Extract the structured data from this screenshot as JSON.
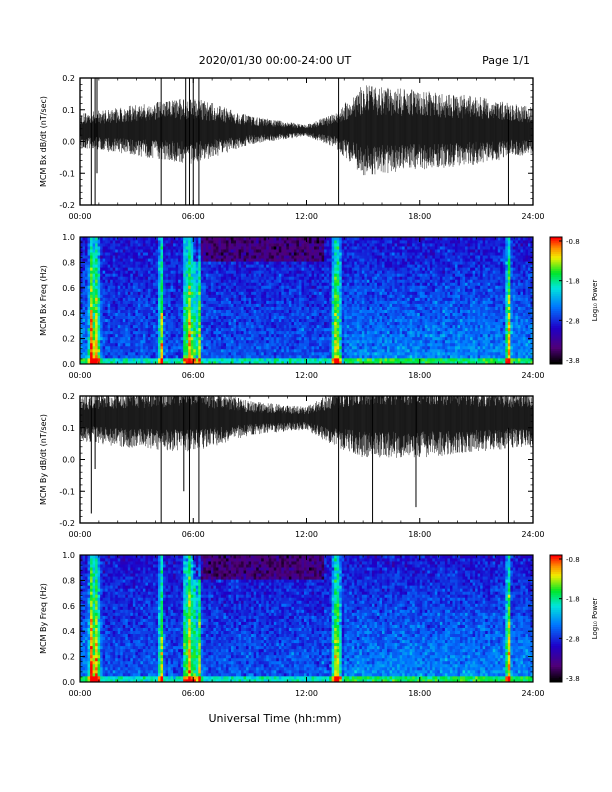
{
  "header": {
    "title": "2020/01/30  00:00-24:00 UT",
    "page": "Page 1/1"
  },
  "xaxis_label": "Universal Time (hh:mm)",
  "colorbar": {
    "label": "Log₁₀ Power",
    "ticks": [
      "-0.8",
      "-1.8",
      "-2.8",
      "-3.8"
    ],
    "scale": "rainbow: black-purple-blue-cyan-green-yellow-orange-red"
  },
  "chart_data": [
    {
      "type": "line",
      "ylabel": "MCM Bx dB/dt (nT/sec)",
      "xlim": [
        0,
        24
      ],
      "ylim": [
        -0.2,
        0.2
      ],
      "x_ticks": [
        "00:00",
        "06:00",
        "12:00",
        "18:00",
        "24:00"
      ],
      "y_ticks": [
        "0.2",
        "0.1",
        "0.0",
        "-0.1",
        "-0.2"
      ],
      "baseline": 0.035,
      "noise_profile": [
        [
          0,
          0.03
        ],
        [
          2,
          0.04
        ],
        [
          6,
          0.06
        ],
        [
          9,
          0.025
        ],
        [
          12,
          0.01
        ],
        [
          13.5,
          0.03
        ],
        [
          15,
          0.08
        ],
        [
          18,
          0.07
        ],
        [
          21,
          0.06
        ],
        [
          24,
          0.04
        ]
      ],
      "spikes": [
        [
          0.6,
          -0.2,
          0.2
        ],
        [
          0.8,
          -0.2,
          0.2
        ],
        [
          0.9,
          -0.1,
          0.2
        ],
        [
          4.3,
          -0.2,
          0.2
        ],
        [
          5.6,
          -0.2,
          0.2
        ],
        [
          5.8,
          -0.2,
          0.2
        ],
        [
          6.0,
          -0.2,
          0.2
        ],
        [
          6.3,
          -0.2,
          0.2
        ],
        [
          13.7,
          -0.2,
          0.2
        ],
        [
          22.7,
          -0.2,
          0.1
        ]
      ]
    },
    {
      "type": "heatmap",
      "ylabel": "MCM Bx Freq (Hz)",
      "xlim": [
        0,
        24
      ],
      "ylim": [
        0.0,
        1.0
      ],
      "x_ticks": [
        "00:00",
        "06:00",
        "12:00",
        "18:00",
        "24:00"
      ],
      "y_ticks": [
        "1.0",
        "0.8",
        "0.6",
        "0.4",
        "0.2",
        "0.0"
      ],
      "zlim": [
        -3.8,
        -0.8
      ],
      "bright_times": [
        0.6,
        0.8,
        0.9,
        4.3,
        5.6,
        5.8,
        6.0,
        6.3,
        13.5,
        13.7,
        22.7
      ]
    },
    {
      "type": "line",
      "ylabel": "MCM By dB/dt (nT/sec)",
      "xlim": [
        0,
        24
      ],
      "ylim": [
        -0.2,
        0.2
      ],
      "x_ticks": [
        "00:00",
        "06:00",
        "12:00",
        "18:00",
        "24:00"
      ],
      "y_ticks": [
        "0.2",
        "0.1",
        "0.0",
        "-0.1",
        "-0.2"
      ],
      "baseline": 0.13,
      "noise_profile": [
        [
          0,
          0.04
        ],
        [
          2,
          0.05
        ],
        [
          6,
          0.06
        ],
        [
          9,
          0.03
        ],
        [
          12,
          0.02
        ],
        [
          13.5,
          0.05
        ],
        [
          15,
          0.07
        ],
        [
          18,
          0.07
        ],
        [
          21,
          0.06
        ],
        [
          24,
          0.05
        ]
      ],
      "spikes": [
        [
          0.6,
          -0.17,
          0.2
        ],
        [
          0.8,
          -0.03,
          0.2
        ],
        [
          4.3,
          -0.2,
          0.2
        ],
        [
          5.5,
          -0.1,
          0.2
        ],
        [
          5.8,
          -0.2,
          0.2
        ],
        [
          6.3,
          -0.2,
          0.2
        ],
        [
          13.7,
          -0.2,
          0.2
        ],
        [
          15.5,
          -0.2,
          0.2
        ],
        [
          17.8,
          -0.15,
          0.2
        ],
        [
          22.7,
          -0.2,
          0.1
        ]
      ]
    },
    {
      "type": "heatmap",
      "ylabel": "MCM By Freq (Hz)",
      "xlim": [
        0,
        24
      ],
      "ylim": [
        0.0,
        1.0
      ],
      "x_ticks": [
        "00:00",
        "06:00",
        "12:00",
        "18:00",
        "24:00"
      ],
      "y_ticks": [
        "1.0",
        "0.8",
        "0.6",
        "0.4",
        "0.2",
        "0.0"
      ],
      "zlim": [
        -3.8,
        -0.8
      ],
      "bright_times": [
        0.6,
        0.8,
        0.9,
        4.3,
        5.6,
        5.8,
        6.0,
        6.3,
        13.5,
        13.7,
        22.7
      ]
    }
  ]
}
